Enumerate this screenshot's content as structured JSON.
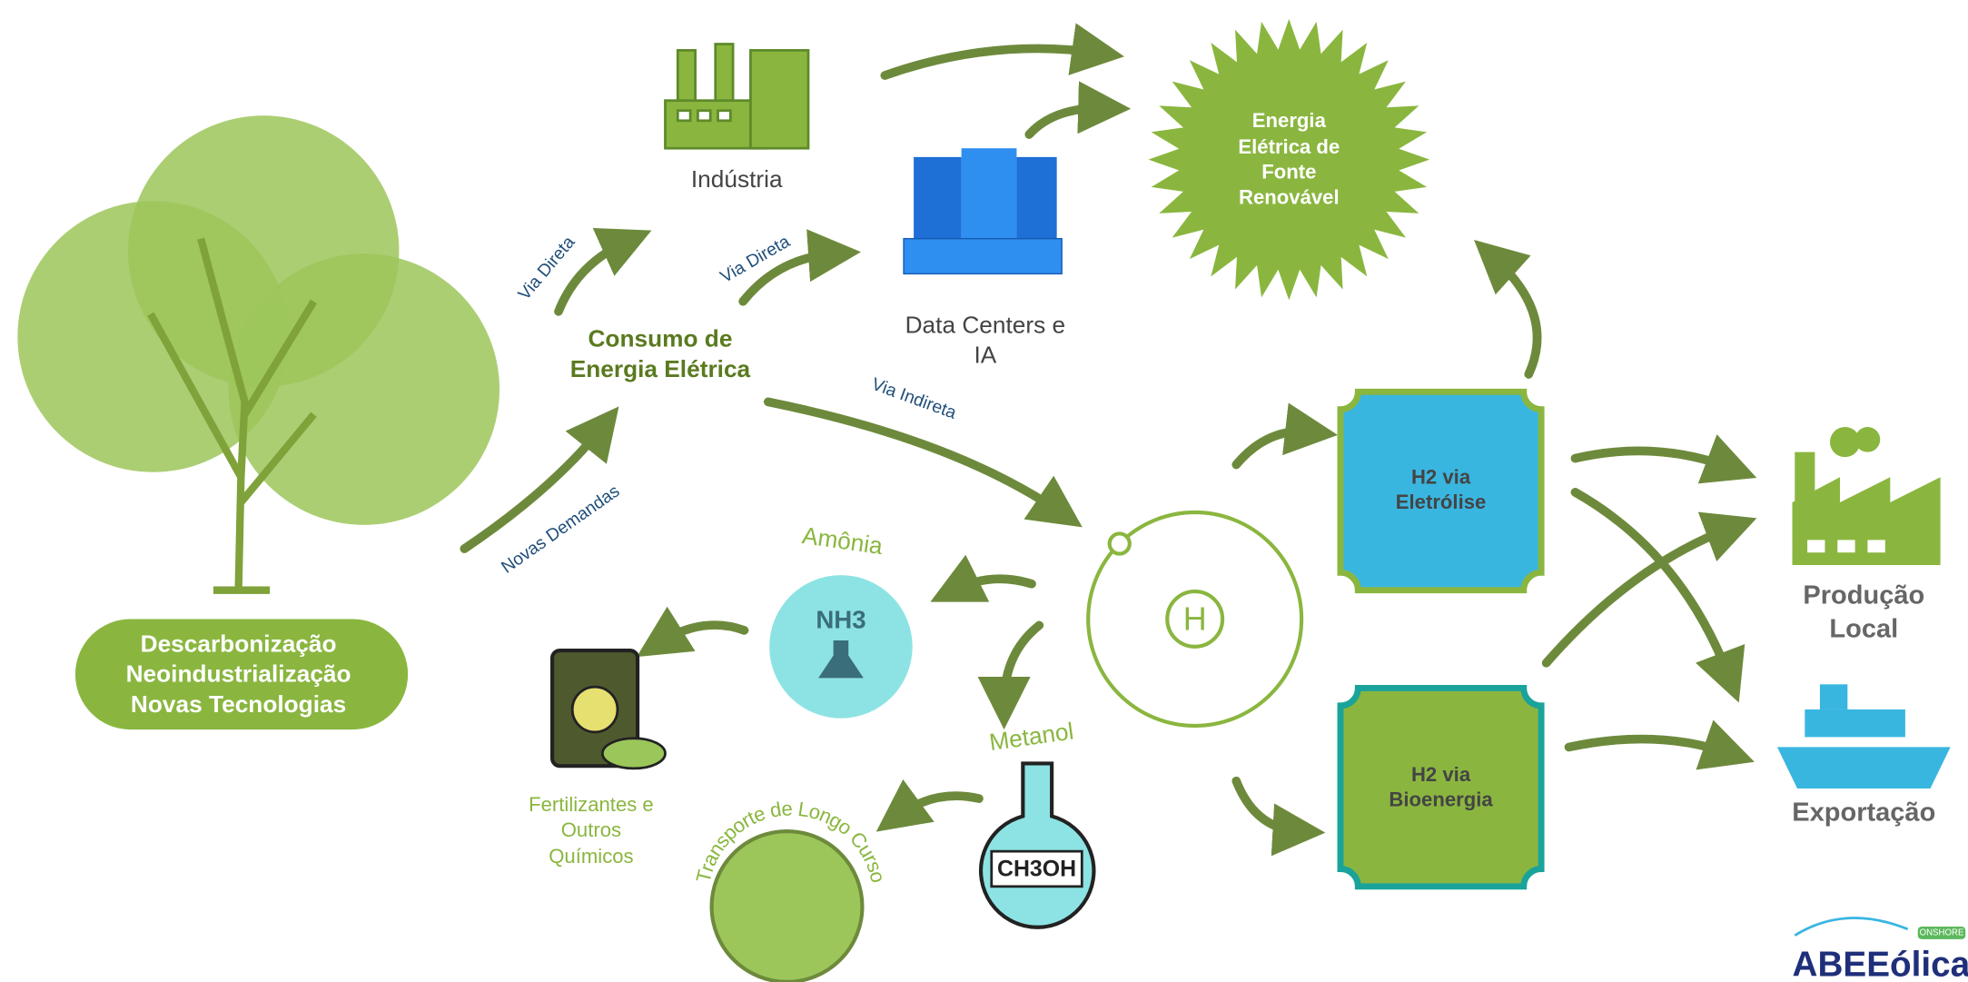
{
  "tree": {
    "lines": [
      "Descarbonização",
      "Neoindustrialização",
      "Novas Tecnologias"
    ]
  },
  "consumo": {
    "lines": [
      "Consumo de",
      "Energia Elétrica"
    ]
  },
  "industria": {
    "label": "Indústria"
  },
  "datacenters": {
    "lines": [
      "Data Centers e",
      "IA"
    ]
  },
  "renovavel": {
    "lines": [
      "Energia",
      "Elétrica de",
      "Fonte",
      "Renovável"
    ]
  },
  "edges": {
    "via_direta_1": "Via Direta",
    "via_direta_2": "Via Direta",
    "via_indireta": "Via Indireta",
    "novas_demandas": "Novas Demandas"
  },
  "hydrogen": {
    "symbol": "H"
  },
  "h2_eletrolise": {
    "lines": [
      "H2 via",
      "Eletrólise"
    ]
  },
  "h2_bioenergia": {
    "lines": [
      "H2 via",
      "Bioenergia"
    ]
  },
  "amonia": {
    "label": "Amônia",
    "formula": "NH3"
  },
  "metanol": {
    "label": "Metanol",
    "formula": "CH3OH"
  },
  "fertilizantes": {
    "lines": [
      "Fertilizantes e",
      "Outros",
      "Químicos"
    ]
  },
  "transporte": {
    "label": "Transporte de Longo Curso"
  },
  "producao": {
    "lines": [
      "Produção",
      "Local"
    ]
  },
  "exportacao": {
    "label": "Exportação"
  },
  "logo": {
    "name": "ABEEólica",
    "tag": "ONSHORE"
  }
}
